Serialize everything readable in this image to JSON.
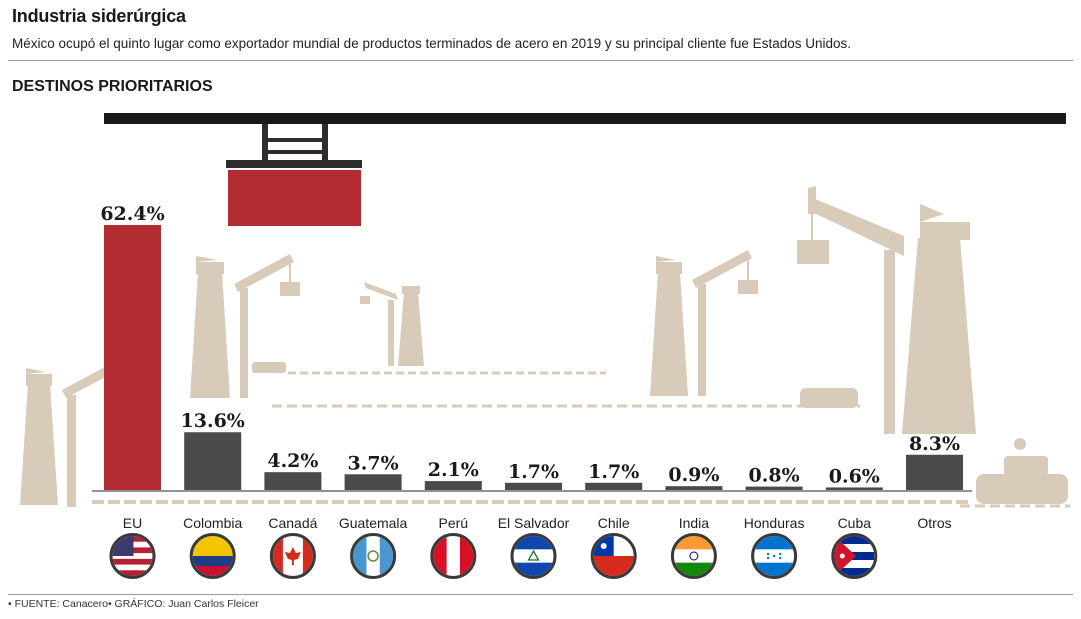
{
  "header": {
    "title": "Industria siderúrgica",
    "subtitle": "México ocupó el quinto lugar como exportador mundial de productos terminados de acero en 2019 y su principal cliente fue Estados Unidos.",
    "section_title": "DESTINOS PRIORITARIOS"
  },
  "footer": {
    "source": "• FUENTE: Canacero• GRÁFICO: Juan Carlos Fleicer"
  },
  "colors": {
    "highlight": "#b22c31",
    "bar": "#4a4a4a",
    "illustration": "#d8cbb9",
    "rail": "#6e6e6e"
  },
  "chart_data": {
    "type": "bar",
    "title": "DESTINOS PRIORITARIOS",
    "xlabel": "",
    "ylabel": "",
    "unit": "%",
    "categories": [
      "EU",
      "Colombia",
      "Canadá",
      "Guatemala",
      "Perú",
      "El Salvador",
      "Chile",
      "India",
      "Honduras",
      "Cuba",
      "Otros"
    ],
    "values": [
      62.4,
      13.6,
      4.2,
      3.7,
      2.1,
      1.7,
      1.7,
      0.9,
      0.8,
      0.6,
      8.3
    ],
    "value_labels": [
      "62.4%",
      "13.6%",
      "4.2%",
      "3.7%",
      "2.1%",
      "1.7%",
      "1.7%",
      "0.9%",
      "0.8%",
      "0.6%",
      "8.3%"
    ],
    "highlight_index": 0,
    "flags": [
      "us-flag-icon",
      "colombia-flag-icon",
      "canada-flag-icon",
      "guatemala-flag-icon",
      "peru-flag-icon",
      "el-salvador-flag-icon",
      "chile-flag-icon",
      "india-flag-icon",
      "honduras-flag-icon",
      "cuba-flag-icon",
      ""
    ],
    "grid": false,
    "legend": "none"
  }
}
